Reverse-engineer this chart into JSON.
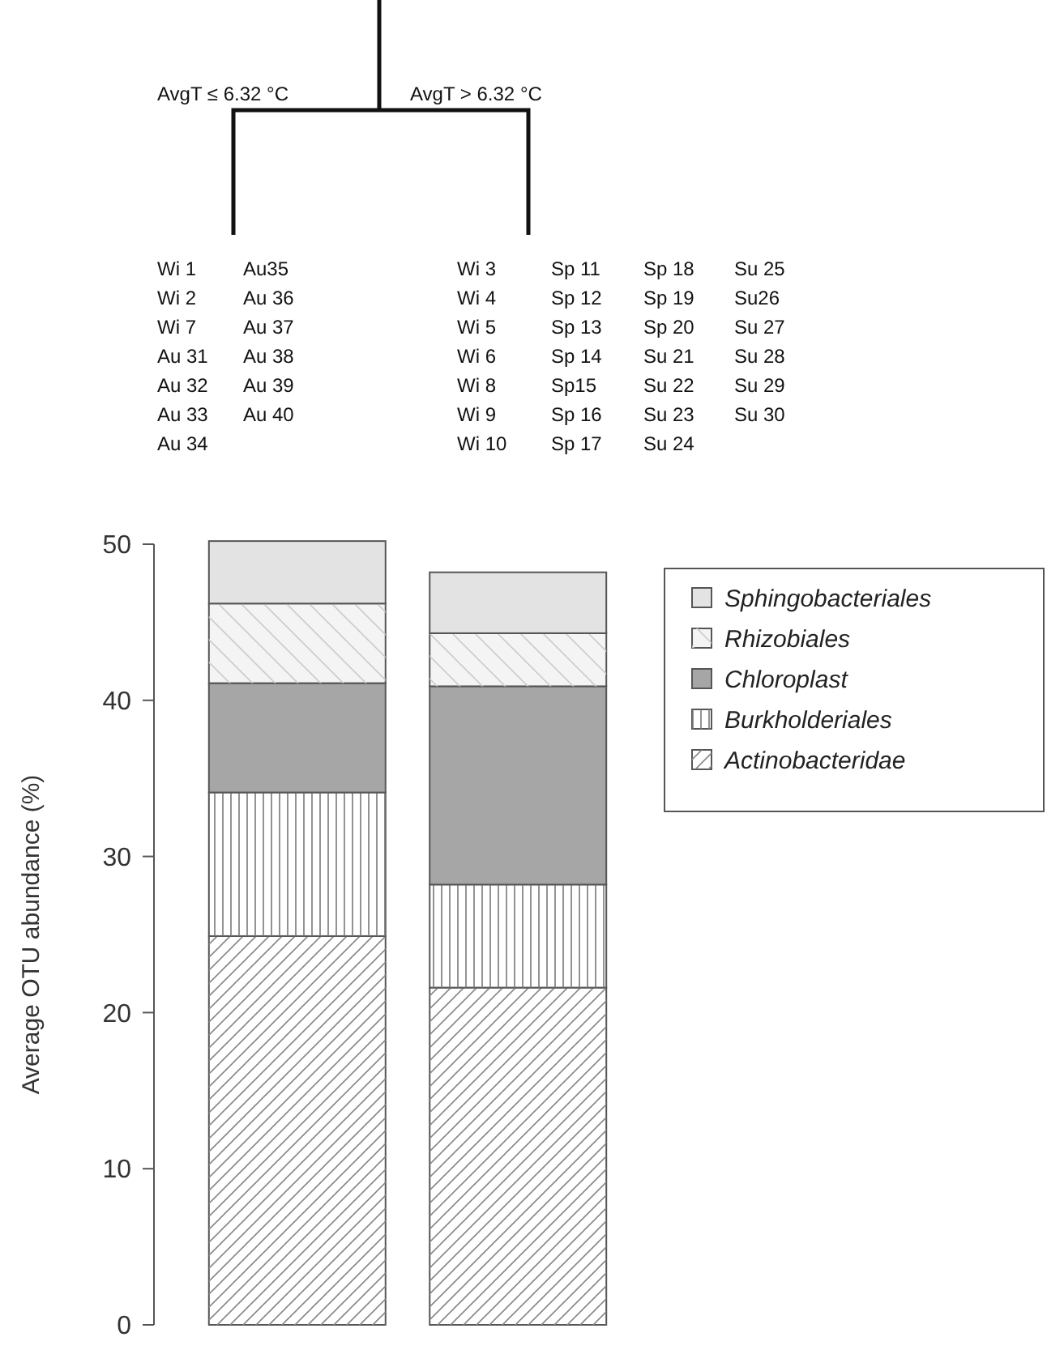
{
  "chart_data": {
    "type": "bar",
    "stacked": true,
    "categories": [
      null,
      null
    ],
    "ylabel": "Average OTU abundance (%)",
    "ylim": [
      0,
      50
    ],
    "yticks": [
      0,
      10,
      20,
      30,
      40,
      50
    ],
    "legend": "right",
    "series": [
      {
        "name": "Actinobacteridae",
        "color": "#ffffff",
        "values": [
          24.9,
          21.6
        ]
      },
      {
        "name": "Burkholderiales",
        "color": "#ffffff",
        "values": [
          9.2,
          6.6
        ]
      },
      {
        "name": "Chloroplast",
        "color": "#a6a6a6",
        "values": [
          7.0,
          12.7
        ]
      },
      {
        "name": "Rhizobiales",
        "color": "#f4f4f4",
        "values": [
          5.1,
          3.4
        ]
      },
      {
        "name": "Sphingobacteriales",
        "color": "#e3e3e3",
        "values": [
          4.0,
          3.9
        ]
      }
    ],
    "annotations": [
      "AvgT ≤ 6.32 °C",
      "AvgT > 6.32 °C",
      "Wi 1\nWi 2\nWi 7\nAu 31\nAu 32\nAu 33\nAu 34",
      "Au35\nAu 36\nAu 37\nAu 38\nAu 39\nAu 40",
      "Wi 3\nWi 4\nWi 5\nWi 6\nWi 8\nWi 9\nWi 10",
      "Sp 11\nSp 12\nSp 13\nSp 14\nSp15\nSp 16\nSp 17",
      "Sp 18\nSp 19\nSp 20\nSu 21\nSu 22\nSu 23\nSu 24",
      "Su 25\nSu26\nSu 27\nSu 28\nSu 29\nSu 30"
    ]
  }
}
